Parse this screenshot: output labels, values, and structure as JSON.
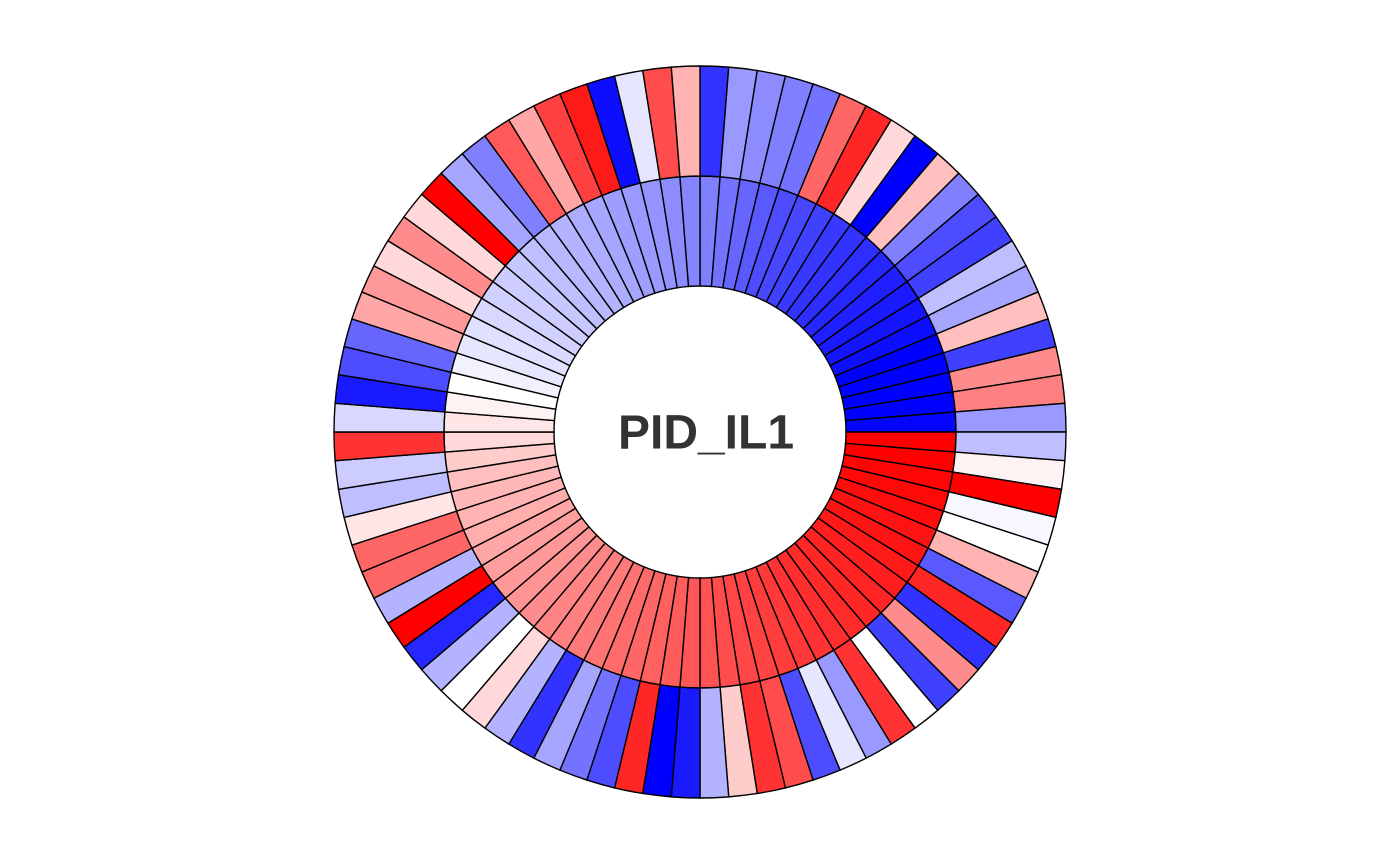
{
  "chart_data": {
    "type": "circular-heatmap",
    "title": "PID_IL1",
    "color_scale": {
      "low": "#0000ff",
      "mid": "#ffffff",
      "high": "#ff0000",
      "domain": [
        -1,
        1
      ]
    },
    "n_segments": 80,
    "rings": [
      {
        "name": "",
        "position": "inner",
        "values": [
          -0.5,
          -0.55,
          -0.6,
          -0.65,
          -0.7,
          -0.72,
          -0.75,
          -0.78,
          -0.8,
          -0.82,
          -0.85,
          -0.88,
          -0.9,
          -0.92,
          -0.95,
          -1.0,
          -1.0,
          -1.0,
          -1.0,
          -0.98,
          1.0,
          1.0,
          0.98,
          0.97,
          0.95,
          0.93,
          0.92,
          0.9,
          0.88,
          0.86,
          0.85,
          0.83,
          0.82,
          0.8,
          0.78,
          0.76,
          0.74,
          0.72,
          0.7,
          0.68,
          0.66,
          0.64,
          0.62,
          0.6,
          0.58,
          0.55,
          0.52,
          0.5,
          0.48,
          0.45,
          0.42,
          0.4,
          0.38,
          0.35,
          0.32,
          0.3,
          0.28,
          0.25,
          0.2,
          0.15,
          0.1,
          0.05,
          0.0,
          -0.05,
          -0.1,
          -0.12,
          -0.15,
          -0.18,
          -0.2,
          -0.22,
          -0.25,
          -0.28,
          -0.3,
          -0.32,
          -0.35,
          -0.38,
          -0.4,
          -0.42,
          -0.45,
          -0.48
        ]
      },
      {
        "name": "",
        "position": "outer",
        "values": [
          -0.8,
          -0.4,
          -0.45,
          -0.5,
          -0.55,
          0.6,
          0.85,
          0.15,
          -1.0,
          0.25,
          -0.5,
          -0.7,
          -0.75,
          -0.25,
          -0.35,
          0.25,
          -0.75,
          0.45,
          0.5,
          -0.4,
          -0.25,
          0.05,
          1.0,
          -0.03,
          0.0,
          0.3,
          -0.65,
          0.85,
          -0.8,
          0.45,
          -0.75,
          0.0,
          0.8,
          -0.4,
          -0.1,
          -0.7,
          0.7,
          0.8,
          0.2,
          -0.3,
          -0.9,
          -1.0,
          0.85,
          -0.7,
          -0.55,
          -0.35,
          -0.8,
          -0.3,
          0.15,
          0.0,
          -0.3,
          -0.85,
          1.0,
          -0.3,
          0.6,
          0.6,
          0.1,
          -0.25,
          -0.2,
          0.8,
          -0.15,
          -0.9,
          -0.7,
          -0.6,
          0.35,
          0.4,
          0.15,
          0.45,
          0.15,
          1.0,
          -0.35,
          -0.5,
          0.65,
          0.35,
          0.75,
          0.9,
          -0.95,
          -0.1,
          0.7,
          0.3
        ]
      }
    ]
  }
}
